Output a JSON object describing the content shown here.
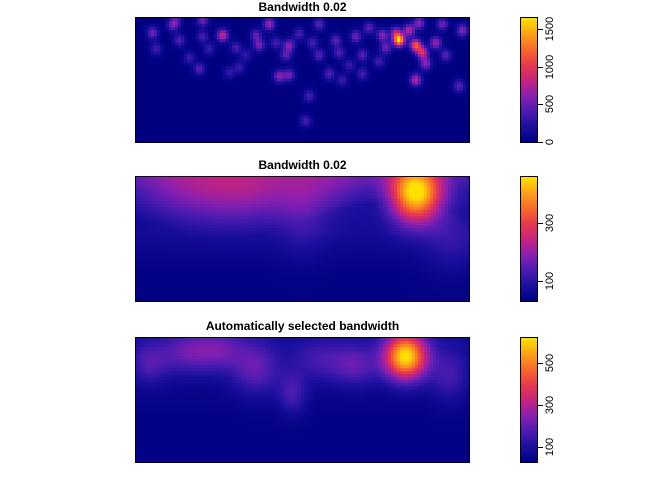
{
  "chart_data": [
    {
      "type": "heatmap",
      "title": "Bandwidth 0.02",
      "colormap": [
        "#00007F",
        "#1A0F9E",
        "#4B1CB0",
        "#8A1FB0",
        "#C4247F",
        "#E8394E",
        "#F76A2A",
        "#FCA11C",
        "#FFE000"
      ],
      "colorbar_ticks": [
        0,
        500,
        1000,
        1500
      ],
      "colorbar_range": [
        0,
        1650
      ],
      "description_peak": "many small hotspots in upper half, highest near upper right"
    },
    {
      "type": "heatmap",
      "title": "Bandwidth 0.02",
      "colormap": [
        "#00007F",
        "#1A0F9E",
        "#4B1CB0",
        "#8A1FB0",
        "#C4247F",
        "#E8394E",
        "#F76A2A",
        "#FCA11C",
        "#FFE000"
      ],
      "colorbar_ticks": [
        100,
        300
      ],
      "colorbar_range": [
        30,
        460
      ]
    },
    {
      "type": "heatmap",
      "title": "Automatically selected bandwidth",
      "colormap": [
        "#00007F",
        "#1A0F9E",
        "#4B1CB0",
        "#8A1FB0",
        "#C4247F",
        "#E8394E",
        "#F76A2A",
        "#FCA11C",
        "#FFE000"
      ],
      "colorbar_ticks": [
        100,
        300,
        500
      ],
      "colorbar_range": [
        30,
        620
      ]
    }
  ]
}
